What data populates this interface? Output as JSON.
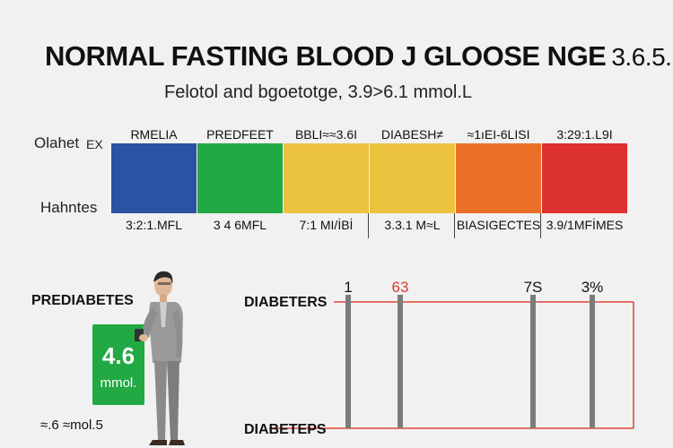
{
  "header": {
    "title": "NORMAL FASTING BLOOD J GLOOSE NGE",
    "title_value": "3.6.5.",
    "subtitle": "Felotol and bgoetotge, 3.9>6.1 mmol.L"
  },
  "chart_data": [
    {
      "type": "bar",
      "subtype": "color-range-band",
      "categories": [
        "RMELIA",
        "PREDFEET",
        "BBLI≈≈3.6I",
        "DIABESH≠",
        "≈1ıEI-6LISI",
        "3:29:1.L9I"
      ],
      "range_labels": [
        "3:2:1.MFL",
        "3 4 6MFL",
        "7:1 MI/İBİ",
        "3.3.1 M≈L",
        "BIASIGECTES",
        "3.9/1MFİMES"
      ],
      "colors": [
        "#2a54a3",
        "#23a944",
        "#ecc33e",
        "#ecc33e",
        "#ea7028",
        "#dd3030"
      ],
      "side_labels": [
        "Olahet",
        "EX",
        "Hahntes"
      ]
    },
    {
      "type": "line",
      "subtype": "threshold-markers",
      "y_labels": [
        "DIABETERS",
        "DIABETEPS"
      ],
      "markers": [
        {
          "label": "1",
          "color": "#111111"
        },
        {
          "label": "63",
          "color": "#e03a2e"
        },
        {
          "label": "7S",
          "color": "#111111"
        },
        {
          "label": "3%",
          "color": "#111111"
        }
      ],
      "accent": "#e0463a"
    }
  ],
  "person": {
    "label": "PREDIABETES",
    "reading_value": "4.6",
    "reading_unit": "mmol.",
    "caption": "≈.6 ≈mol.5"
  },
  "colors": {
    "background": "#f1f1f1",
    "box_green": "#23a944",
    "line_red": "#e0463a",
    "pillar": "#7b7b7b"
  }
}
